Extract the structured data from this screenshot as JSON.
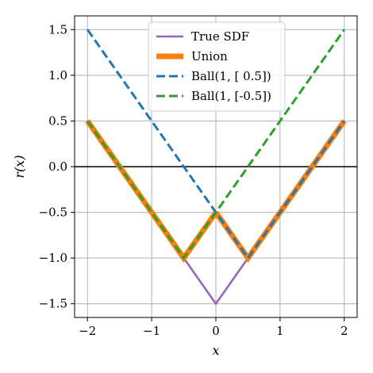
{
  "chart_data": {
    "type": "line",
    "xlabel": "x",
    "ylabel": "r(x)",
    "xlim": [
      -2.2,
      2.2
    ],
    "ylim": [
      -1.65,
      1.65
    ],
    "x_ticks": [
      -2,
      -1,
      0,
      1,
      2
    ],
    "x_tick_labels": [
      "−2",
      "−1",
      "0",
      "1",
      "2"
    ],
    "y_ticks": [
      1.5,
      1.0,
      0.5,
      0.0,
      -0.5,
      -1.0,
      -1.5
    ],
    "y_tick_labels": [
      "1.5",
      "1.0",
      "0.5",
      "0.0",
      "−0.5",
      "−1.0",
      "−1.5"
    ],
    "grid": true,
    "zero_line": 0,
    "legend_position": "top-center",
    "series": [
      {
        "name": "True SDF",
        "color": "#9467bd",
        "style": "solid",
        "x": [
          -2,
          -0.5,
          0,
          0.5,
          2
        ],
        "y": [
          0.5,
          -1.0,
          -1.5,
          -1.0,
          0.5
        ]
      },
      {
        "name": "Union",
        "color": "#ff7f0e",
        "style": "solid-thick",
        "segments": [
          {
            "x": [
              -2,
              -0.5,
              0
            ],
            "y": [
              0.5,
              -1.0,
              -0.5
            ]
          },
          {
            "x": [
              0,
              0.5,
              2
            ],
            "y": [
              -0.5,
              -1.0,
              0.5
            ]
          }
        ]
      },
      {
        "name": "Ball(1, [ 0.5])",
        "color": "#1f77b4",
        "style": "dashed",
        "x": [
          -2,
          0.5,
          2
        ],
        "y": [
          1.5,
          -1.0,
          0.5
        ]
      },
      {
        "name": "Ball(1, [-0.5])",
        "color": "#2ca02c",
        "style": "dashed",
        "x": [
          -2,
          -0.5,
          2
        ],
        "y": [
          0.5,
          -1.0,
          1.5
        ]
      }
    ]
  }
}
